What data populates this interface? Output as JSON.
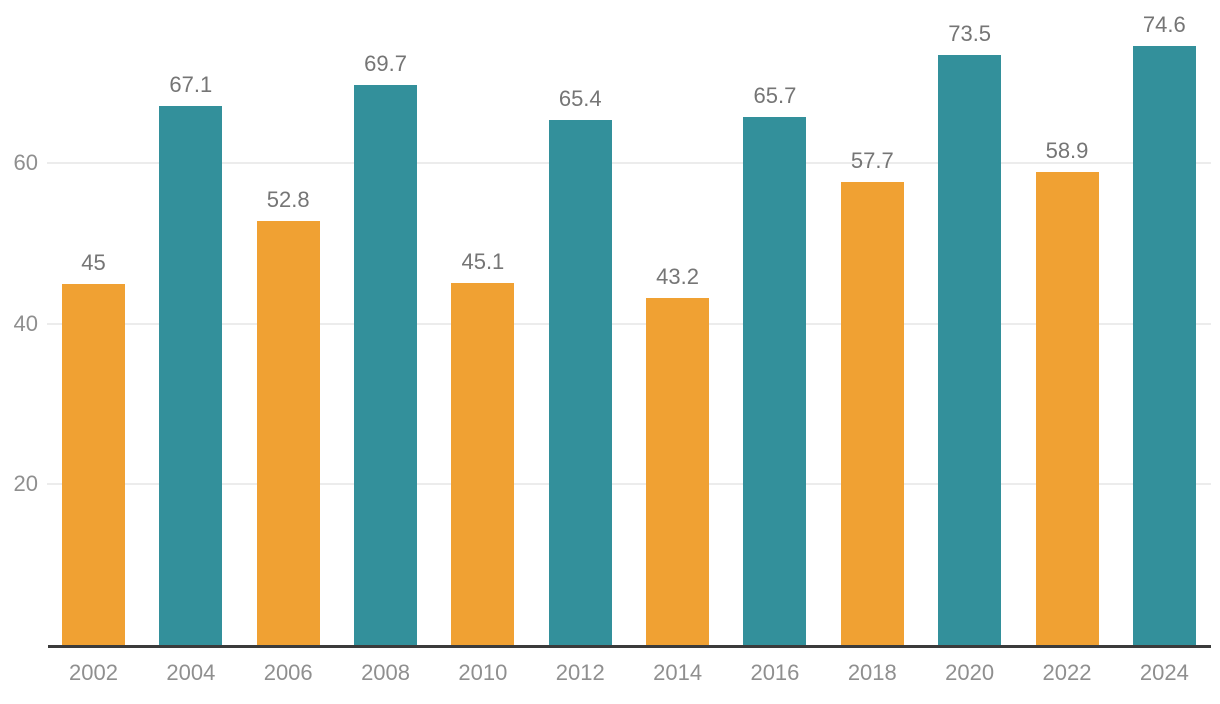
{
  "chart_data": {
    "type": "bar",
    "title": "",
    "xlabel": "",
    "ylabel": "",
    "categories": [
      "2002",
      "2004",
      "2006",
      "2008",
      "2010",
      "2012",
      "2014",
      "2016",
      "2018",
      "2020",
      "2022",
      "2024"
    ],
    "values": [
      45,
      67.1,
      52.8,
      69.7,
      45.1,
      65.4,
      43.2,
      65.7,
      57.7,
      73.5,
      58.9,
      74.6
    ],
    "value_labels": [
      "45",
      "67.1",
      "52.8",
      "69.7",
      "45.1",
      "65.4",
      "43.2",
      "65.7",
      "57.7",
      "73.5",
      "58.9",
      "74.6"
    ],
    "bar_colors": [
      "#f0a133",
      "#33909b",
      "#f0a133",
      "#33909b",
      "#f0a133",
      "#33909b",
      "#f0a133",
      "#33909b",
      "#f0a133",
      "#33909b",
      "#f0a133",
      "#33909b"
    ],
    "palette": {
      "orange": "#f0a133",
      "teal": "#33909b"
    },
    "yticks": [
      20,
      40,
      60
    ],
    "ytick_labels": [
      "20",
      "40",
      "60"
    ],
    "ylim": [
      0,
      80
    ],
    "grid": true,
    "legend": "none",
    "axis_style": {
      "baseline_color": "#3b3b3b",
      "grid_color": "#ececec",
      "tick_label_color": "#8f8f8f",
      "value_label_color": "#757575"
    }
  }
}
